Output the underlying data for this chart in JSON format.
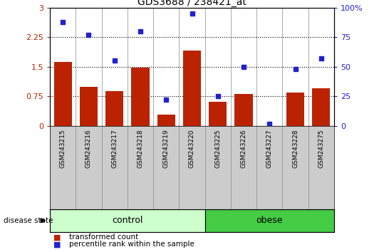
{
  "title": "GDS3688 / 238421_at",
  "samples": [
    "GSM243215",
    "GSM243216",
    "GSM243217",
    "GSM243218",
    "GSM243219",
    "GSM243220",
    "GSM243225",
    "GSM243226",
    "GSM243227",
    "GSM243228",
    "GSM243275"
  ],
  "transformed_count": [
    1.63,
    1.0,
    0.88,
    1.47,
    0.28,
    1.92,
    0.62,
    0.82,
    0.0,
    0.85,
    0.95
  ],
  "percentile_rank": [
    88,
    77,
    55,
    80,
    22,
    95,
    25,
    50,
    2,
    48,
    57
  ],
  "groups": {
    "control": [
      0,
      1,
      2,
      3,
      4,
      5
    ],
    "obese": [
      6,
      7,
      8,
      9,
      10
    ]
  },
  "control_label": "control",
  "obese_label": "obese",
  "disease_state_label": "disease state",
  "bar_color": "#bb2200",
  "dot_color": "#2222cc",
  "left_ylim": [
    0,
    3
  ],
  "right_ylim": [
    0,
    100
  ],
  "left_yticks": [
    0,
    0.75,
    1.5,
    2.25,
    3
  ],
  "right_yticks": [
    0,
    25,
    50,
    75,
    100
  ],
  "left_ytick_labels": [
    "0",
    "0.75",
    "1.5",
    "2.25",
    "3"
  ],
  "right_ytick_labels": [
    "0",
    "25",
    "50",
    "75",
    "100%"
  ],
  "hlines": [
    0.75,
    1.5,
    2.25
  ],
  "control_color": "#ccffcc",
  "obese_color": "#44cc44",
  "sample_box_color": "#cccccc",
  "legend_tc": "transformed count",
  "legend_pr": "percentile rank within the sample"
}
